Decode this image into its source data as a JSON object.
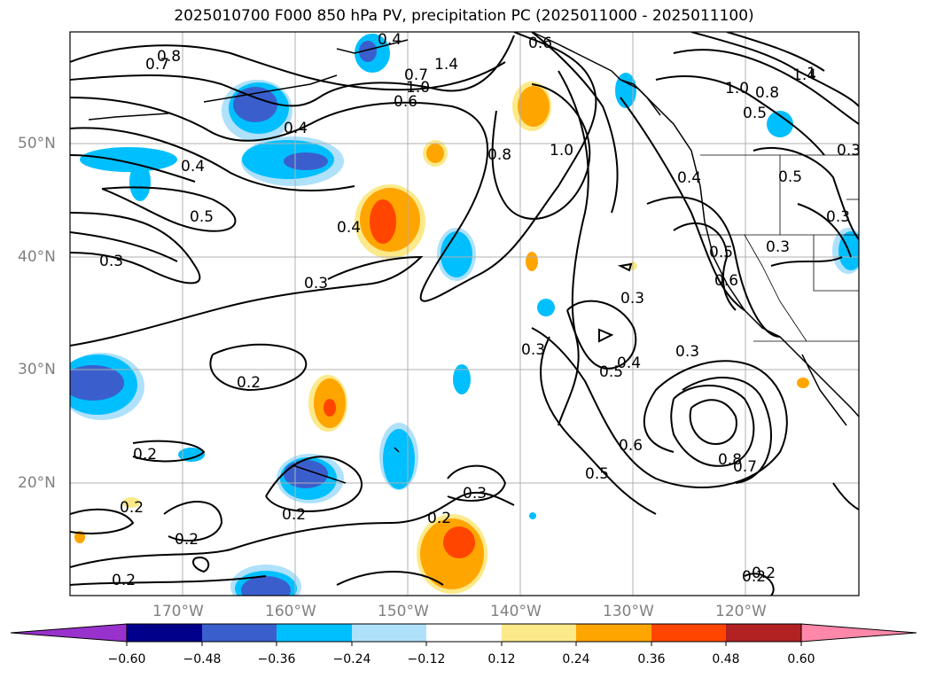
{
  "title": "2025010700 F000 850 hPa PV, precipitation PC (2025011000 - 2025011100)",
  "map": {
    "lat_labels": [
      "50°N",
      "40°N",
      "30°N",
      "20°N"
    ],
    "lon_labels": [
      "170°W",
      "160°W",
      "150°W",
      "140°W",
      "130°W",
      "120°W"
    ],
    "contour_labels": [
      "0.8",
      "0.7",
      "0.4",
      "0.4",
      "0.5",
      "0.3",
      "0.3",
      "0.4",
      "0.2",
      "0.2",
      "0.2",
      "0.2",
      "0.2",
      "0.2",
      "0.2",
      "0.3",
      "0.2",
      "0.6",
      "0.4",
      "1.0",
      "1.0",
      "0.8",
      "0.6",
      "0.7",
      "1.4",
      "1.0",
      "0.8",
      "0.5",
      "0.3",
      "0.4",
      "0.5",
      "0.3",
      "0.6",
      "0.5",
      "0.3",
      "0.3",
      "0.5",
      "0.6",
      "0.8",
      "0.7",
      "0.4",
      "0.5",
      "0.3",
      "0.2",
      "1.4",
      "1",
      "0.3"
    ],
    "colors": {
      "land_outline": "#000000",
      "grid": "#b0b0b0"
    }
  },
  "colorbar": {
    "ticks": [
      "−0.60",
      "−0.48",
      "−0.36",
      "−0.24",
      "−0.12",
      "0.12",
      "0.24",
      "0.36",
      "0.48",
      "0.60"
    ],
    "colors": [
      "#9932cc",
      "#00008b",
      "#3a5fcd",
      "#00bfff",
      "#afe1fa",
      "#ffffff",
      "#fce98a",
      "#ffa500",
      "#ff4500",
      "#b22222",
      "#ff88aa"
    ]
  }
}
